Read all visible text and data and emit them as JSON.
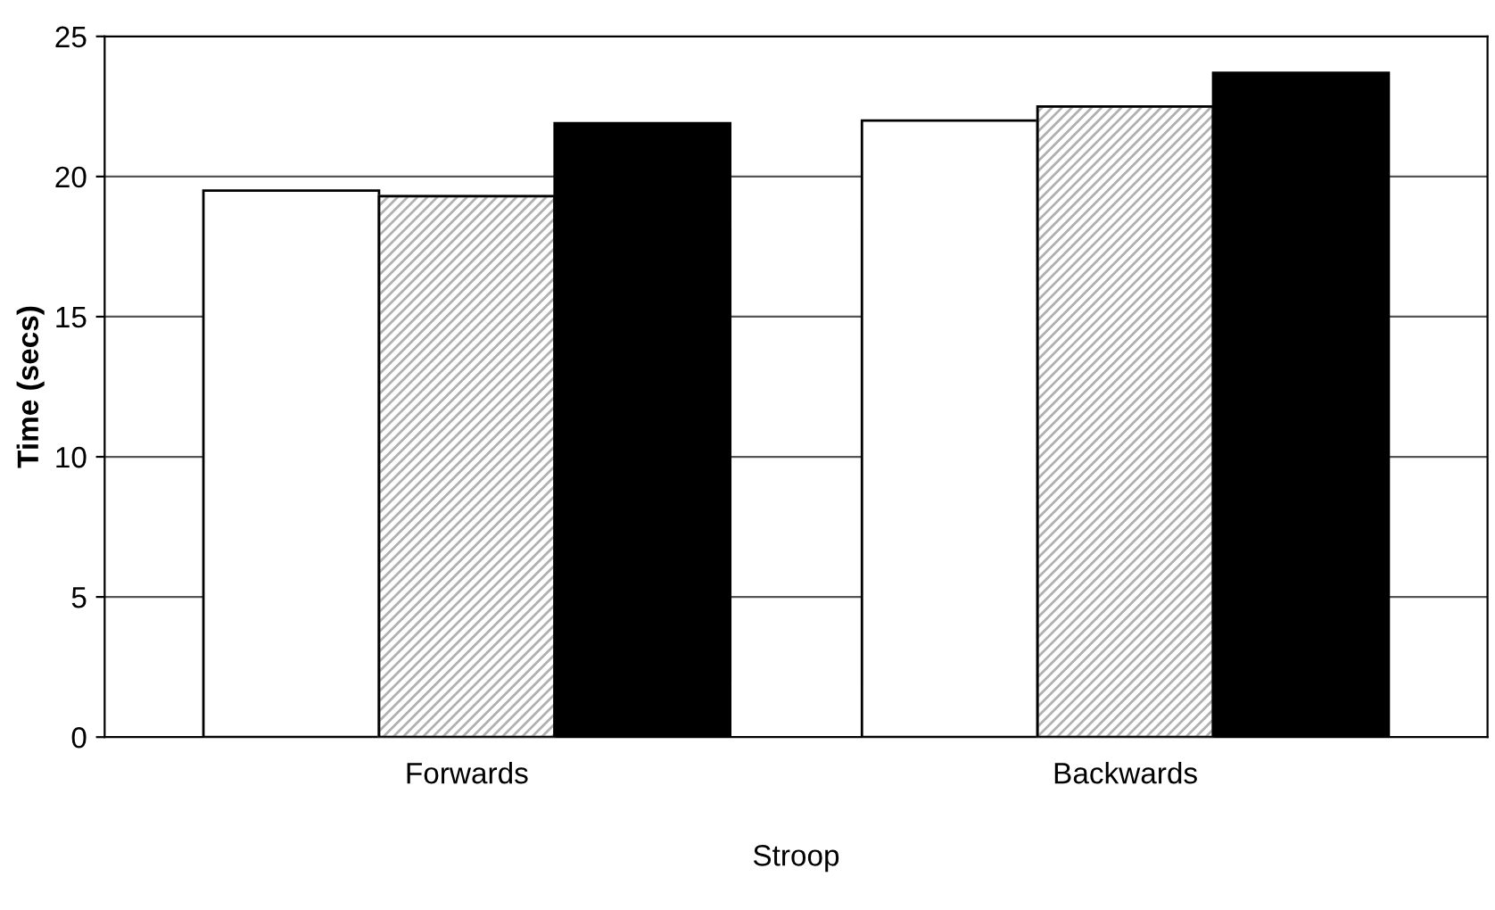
{
  "chart_data": {
    "type": "bar",
    "xlabel": "Stroop",
    "ylabel": "Time (secs)",
    "categories": [
      "Forwards",
      "Backwards"
    ],
    "series": [
      {
        "color": "#ffffff",
        "values": [
          19.5,
          22.0
        ]
      },
      {
        "color": "#b0b0b0",
        "values": [
          19.3,
          22.5
        ]
      },
      {
        "color": "#000000",
        "values": [
          21.9,
          23.7
        ]
      }
    ],
    "ylim": [
      0,
      25
    ],
    "yticks": [
      0,
      5,
      10,
      15,
      20,
      25
    ],
    "grid": "y",
    "legend": false
  }
}
